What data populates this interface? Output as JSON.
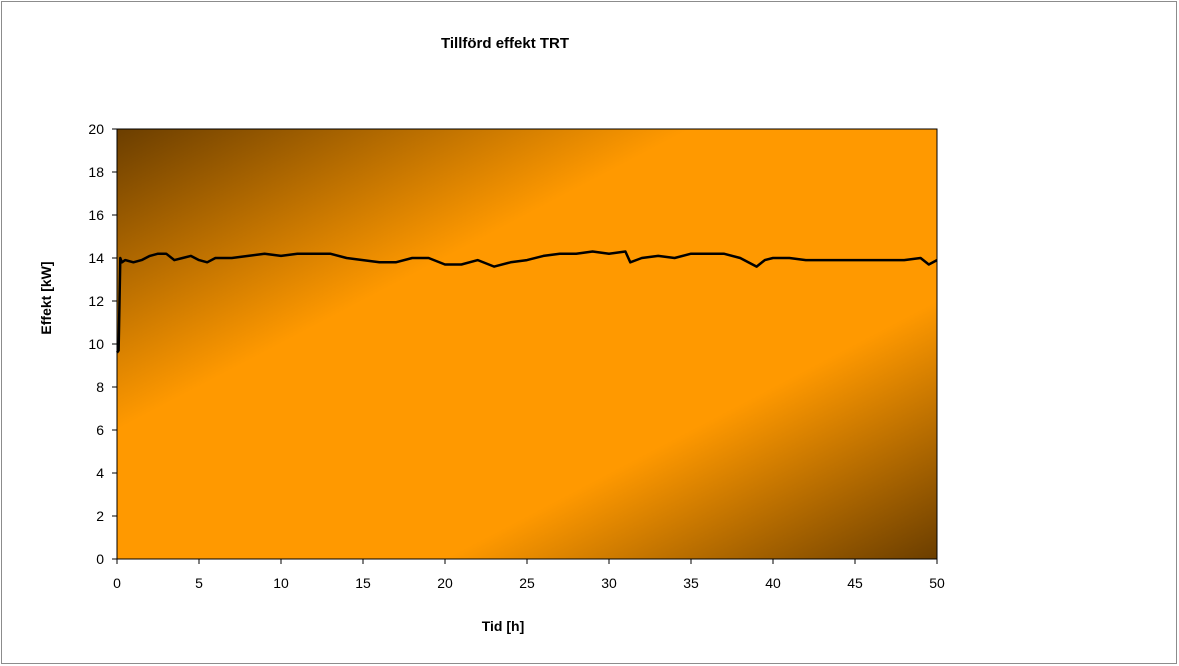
{
  "chart_data": {
    "type": "line",
    "title": "Tillförd effekt TRT",
    "xlabel": "Tid [h]",
    "ylabel": "Effekt [kW]",
    "xlim": [
      0,
      50
    ],
    "ylim": [
      0,
      20
    ],
    "xticks": [
      0,
      5,
      10,
      15,
      20,
      25,
      30,
      35,
      40,
      45,
      50
    ],
    "yticks": [
      0,
      2,
      4,
      6,
      8,
      10,
      12,
      14,
      16,
      18,
      20
    ],
    "grid": false,
    "legend": "none",
    "background_gradient": [
      "#6b3e00",
      "#ff9900",
      "#ff9900",
      "#6b3e00"
    ],
    "line_color": "#000000",
    "series": [
      {
        "x": [
          0,
          0.1,
          0.2,
          0.3,
          0.5,
          1,
          1.5,
          2,
          2.5,
          3,
          3.5,
          4,
          4.5,
          5,
          5.5,
          6,
          7,
          8,
          9,
          10,
          11,
          12,
          13,
          14,
          15,
          16,
          17,
          18,
          19,
          20,
          21,
          22,
          23,
          24,
          25,
          26,
          27,
          28,
          29,
          30,
          31,
          31.3,
          32,
          33,
          34,
          35,
          36,
          37,
          38,
          39,
          39.5,
          40,
          41,
          42,
          43,
          44,
          45,
          46,
          47,
          48,
          49,
          49.5,
          50
        ],
        "y": [
          9.6,
          9.7,
          14.0,
          13.8,
          13.9,
          13.8,
          13.9,
          14.1,
          14.2,
          14.2,
          13.9,
          14.0,
          14.1,
          13.9,
          13.8,
          14.0,
          14.0,
          14.1,
          14.2,
          14.1,
          14.2,
          14.2,
          14.2,
          14.0,
          13.9,
          13.8,
          13.8,
          14.0,
          14.0,
          13.7,
          13.7,
          13.9,
          13.6,
          13.8,
          13.9,
          14.1,
          14.2,
          14.2,
          14.3,
          14.2,
          14.3,
          13.8,
          14.0,
          14.1,
          14.0,
          14.2,
          14.2,
          14.2,
          14.0,
          13.6,
          13.9,
          14.0,
          14.0,
          13.9,
          13.9,
          13.9,
          13.9,
          13.9,
          13.9,
          13.9,
          14.0,
          13.7,
          13.9
        ]
      }
    ]
  }
}
